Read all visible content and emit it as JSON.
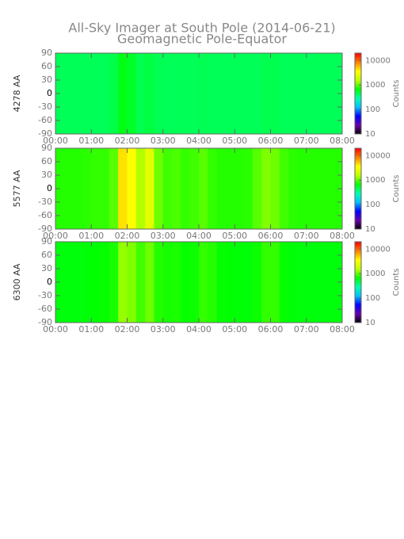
{
  "chart_data": [
    {
      "type": "heatmap",
      "title": "All-Sky Imager at South Pole (2014-06-21)",
      "subtitle": "Geomagnetic Pole-Equator",
      "ylabel": "4278 AA",
      "x": [
        0.125,
        0.375,
        0.625,
        0.875,
        1.125,
        1.375,
        1.625,
        1.875,
        2.125,
        2.375,
        2.625,
        2.875,
        3.125,
        3.375,
        3.625,
        3.875,
        4.125,
        4.375,
        4.625,
        4.875,
        5.125,
        5.375,
        5.625,
        5.875,
        6.125,
        6.375,
        6.625,
        6.875,
        7.125,
        7.375,
        7.625,
        7.875
      ],
      "values": [
        450,
        450,
        450,
        450,
        450,
        450,
        480,
        620,
        560,
        470,
        500,
        460,
        450,
        450,
        450,
        450,
        460,
        450,
        450,
        450,
        450,
        450,
        450,
        470,
        470,
        450,
        450,
        450,
        450,
        450,
        450,
        450
      ],
      "xlim": [
        0,
        8
      ],
      "xticks": [
        {
          "value": 0,
          "label": "00:00"
        },
        {
          "value": 1,
          "label": "01:00"
        },
        {
          "value": 2,
          "label": "02:00"
        },
        {
          "value": 3,
          "label": "03:00"
        },
        {
          "value": 4,
          "label": "04:00"
        },
        {
          "value": 5,
          "label": "05:00"
        },
        {
          "value": 6,
          "label": "06:00"
        },
        {
          "value": 7,
          "label": "07:00"
        },
        {
          "value": 8,
          "label": "08:00"
        }
      ],
      "ylim": [
        -90,
        90
      ],
      "yticks": [
        -90,
        -60,
        -30,
        0,
        30,
        60,
        90
      ],
      "colorbar": {
        "label": "Counts",
        "zlim": [
          10,
          20000
        ],
        "zticks": [
          10,
          100,
          1000,
          10000
        ],
        "log": true,
        "colormap": [
          "#000000",
          "#6a00a8",
          "#0000ff",
          "#00c0ff",
          "#00ffb0",
          "#00ff00",
          "#c0ff00",
          "#ffff00",
          "#ff8000",
          "#ff0000"
        ]
      }
    },
    {
      "type": "heatmap",
      "ylabel": "5577 AA",
      "x": [
        0.125,
        0.375,
        0.625,
        0.875,
        1.125,
        1.375,
        1.625,
        1.875,
        2.125,
        2.375,
        2.625,
        2.875,
        3.125,
        3.375,
        3.625,
        3.875,
        4.125,
        4.375,
        4.625,
        4.875,
        5.125,
        5.375,
        5.625,
        5.875,
        6.125,
        6.375,
        6.625,
        6.875,
        7.125,
        7.375,
        7.625,
        7.875
      ],
      "values": [
        800,
        800,
        800,
        820,
        850,
        850,
        1000,
        4500,
        3500,
        1500,
        2500,
        1100,
        900,
        950,
        850,
        900,
        1000,
        850,
        800,
        800,
        800,
        820,
        1000,
        1200,
        1100,
        900,
        820,
        800,
        800,
        800,
        800,
        800
      ],
      "xlim": [
        0,
        8
      ],
      "xticks": [
        {
          "value": 0,
          "label": "00:00"
        },
        {
          "value": 1,
          "label": "01:00"
        },
        {
          "value": 2,
          "label": "02:00"
        },
        {
          "value": 3,
          "label": "03:00"
        },
        {
          "value": 4,
          "label": "04:00"
        },
        {
          "value": 5,
          "label": "05:00"
        },
        {
          "value": 6,
          "label": "06:00"
        },
        {
          "value": 7,
          "label": "07:00"
        },
        {
          "value": 8,
          "label": "08:00"
        }
      ],
      "ylim": [
        -90,
        90
      ],
      "yticks": [
        -90,
        -60,
        -30,
        0,
        30,
        60,
        90
      ],
      "colorbar": {
        "label": "Counts",
        "zlim": [
          10,
          20000
        ],
        "zticks": [
          10,
          100,
          1000,
          10000
        ],
        "log": true,
        "colormap": [
          "#000000",
          "#6a00a8",
          "#0000ff",
          "#00c0ff",
          "#00ffb0",
          "#00ff00",
          "#c0ff00",
          "#ffff00",
          "#ff8000",
          "#ff0000"
        ]
      }
    },
    {
      "type": "heatmap",
      "ylabel": "6300 AA",
      "x": [
        0.125,
        0.375,
        0.625,
        0.875,
        1.125,
        1.375,
        1.625,
        1.875,
        2.125,
        2.375,
        2.625,
        2.875,
        3.125,
        3.375,
        3.625,
        3.875,
        4.125,
        4.375,
        4.625,
        4.875,
        5.125,
        5.375,
        5.625,
        5.875,
        6.125,
        6.375,
        6.625,
        6.875,
        7.125,
        7.375,
        7.625,
        7.875
      ],
      "values": [
        650,
        650,
        650,
        660,
        680,
        700,
        750,
        1300,
        1200,
        900,
        1100,
        800,
        750,
        760,
        700,
        720,
        850,
        800,
        700,
        680,
        660,
        660,
        720,
        850,
        850,
        700,
        660,
        650,
        650,
        650,
        650,
        650
      ],
      "xlim": [
        0,
        8
      ],
      "xticks": [
        {
          "value": 0,
          "label": "00:00"
        },
        {
          "value": 1,
          "label": "01:00"
        },
        {
          "value": 2,
          "label": "02:00"
        },
        {
          "value": 3,
          "label": "03:00"
        },
        {
          "value": 4,
          "label": "04:00"
        },
        {
          "value": 5,
          "label": "05:00"
        },
        {
          "value": 6,
          "label": "06:00"
        },
        {
          "value": 7,
          "label": "07:00"
        },
        {
          "value": 8,
          "label": "08:00"
        }
      ],
      "ylim": [
        -90,
        90
      ],
      "yticks": [
        -90,
        -60,
        -30,
        0,
        30,
        60,
        90
      ],
      "colorbar": {
        "label": "Counts",
        "zlim": [
          10,
          20000
        ],
        "zticks": [
          10,
          100,
          1000,
          10000
        ],
        "log": true,
        "colormap": [
          "#000000",
          "#6a00a8",
          "#0000ff",
          "#00c0ff",
          "#00ffb0",
          "#00ff00",
          "#c0ff00",
          "#ffff00",
          "#ff8000",
          "#ff0000"
        ]
      }
    }
  ]
}
